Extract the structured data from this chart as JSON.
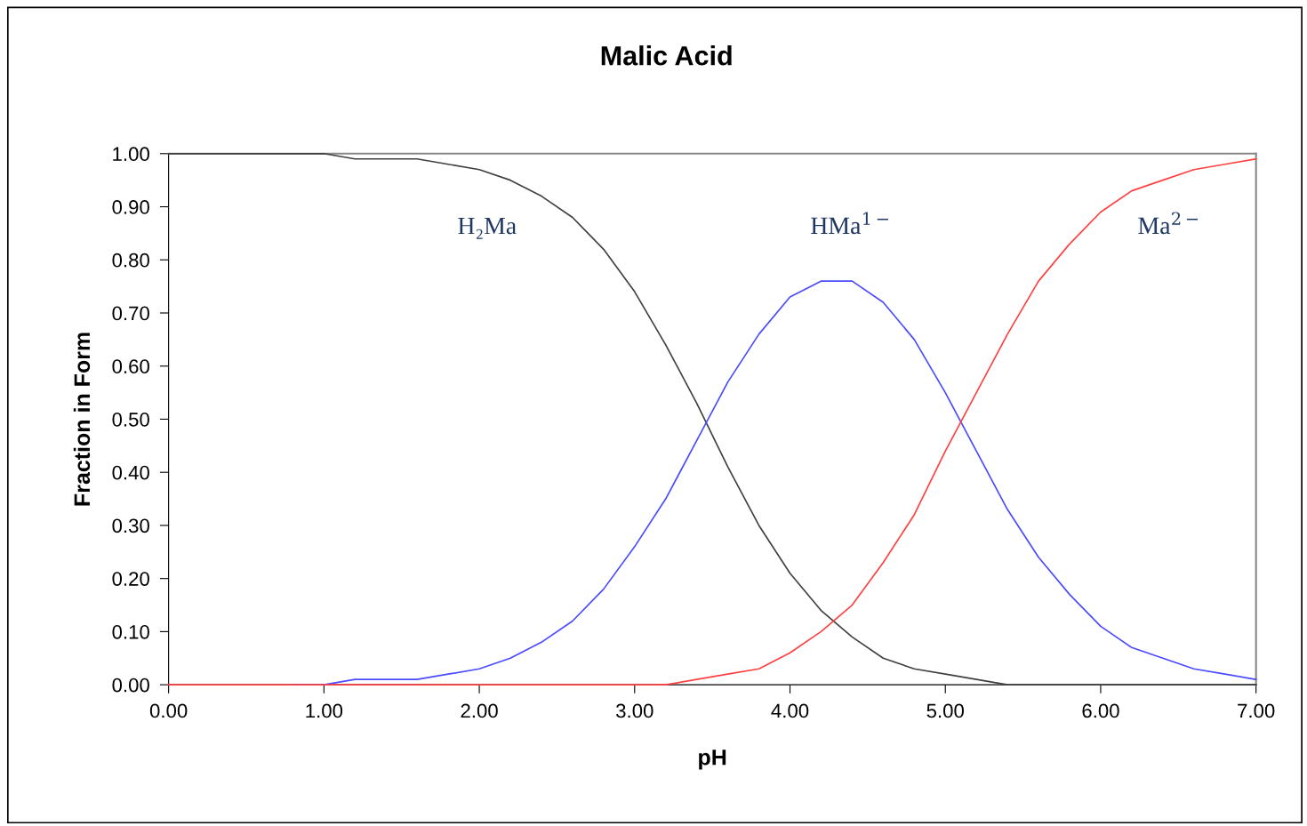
{
  "chart_data": {
    "type": "line",
    "title": "Malic Acid",
    "xlabel": "pH",
    "ylabel": "Fraction in Form",
    "x": [
      0.0,
      0.2,
      0.4,
      0.6,
      0.8,
      1.0,
      1.2,
      1.4,
      1.6,
      1.8,
      2.0,
      2.2,
      2.4,
      2.6,
      2.8,
      3.0,
      3.2,
      3.4,
      3.6,
      3.8,
      4.0,
      4.2,
      4.4,
      4.6,
      4.8,
      5.0,
      5.2,
      5.4,
      5.6,
      5.8,
      6.0,
      6.2,
      6.4,
      6.6,
      6.8,
      7.0
    ],
    "series": [
      {
        "name": "H₂Ma",
        "color": "#404040",
        "values": [
          1.0,
          1.0,
          1.0,
          1.0,
          1.0,
          1.0,
          0.99,
          0.99,
          0.99,
          0.98,
          0.97,
          0.95,
          0.92,
          0.88,
          0.82,
          0.74,
          0.64,
          0.53,
          0.41,
          0.3,
          0.21,
          0.14,
          0.09,
          0.05,
          0.03,
          0.02,
          0.01,
          0.0,
          0.0,
          0.0,
          0.0,
          0.0,
          0.0,
          0.0,
          0.0,
          0.0
        ]
      },
      {
        "name": "HMa$^{1−}$",
        "color": "#4a4aff",
        "values": [
          null,
          null,
          null,
          null,
          0.0,
          0.0,
          0.01,
          0.01,
          0.01,
          0.02,
          0.03,
          0.05,
          0.08,
          0.12,
          0.18,
          0.26,
          0.35,
          0.46,
          0.57,
          0.66,
          0.73,
          0.76,
          0.76,
          0.72,
          0.65,
          0.55,
          0.44,
          0.33,
          0.24,
          0.17,
          0.11,
          0.07,
          0.05,
          0.03,
          0.02,
          0.01
        ]
      },
      {
        "name": "Ma$^{2−}$",
        "color": "#ff4040",
        "values": [
          0.0,
          0.0,
          0.0,
          0.0,
          0.0,
          0.0,
          0.0,
          0.0,
          0.0,
          0.0,
          0.0,
          0.0,
          0.0,
          0.0,
          0.0,
          0.0,
          0.0,
          0.01,
          0.02,
          0.03,
          0.06,
          0.1,
          0.15,
          0.23,
          0.32,
          0.44,
          0.55,
          0.66,
          0.76,
          0.83,
          0.89,
          0.93,
          0.95,
          0.97,
          0.98,
          0.99
        ]
      }
    ],
    "xlim": [
      0,
      7
    ],
    "ylim": [
      0,
      1
    ],
    "xticks": [
      {
        "value": 0,
        "label": "0.00"
      },
      {
        "value": 1,
        "label": "1.00"
      },
      {
        "value": 2,
        "label": "2.00"
      },
      {
        "value": 3,
        "label": "3.00"
      },
      {
        "value": 4,
        "label": "4.00"
      },
      {
        "value": 5,
        "label": "5.00"
      },
      {
        "value": 6,
        "label": "6.00"
      },
      {
        "value": 7,
        "label": "7.00"
      }
    ],
    "yticks": [
      {
        "value": 0,
        "label": "0.00"
      },
      {
        "value": 0.1,
        "label": "0.10"
      },
      {
        "value": 0.2,
        "label": "0.20"
      },
      {
        "value": 0.3,
        "label": "0.30"
      },
      {
        "value": 0.4,
        "label": "0.40"
      },
      {
        "value": 0.5,
        "label": "0.50"
      },
      {
        "value": 0.6,
        "label": "0.60"
      },
      {
        "value": 0.7,
        "label": "0.70"
      },
      {
        "value": 0.8,
        "label": "0.80"
      },
      {
        "value": 0.9,
        "label": "0.90"
      },
      {
        "value": 1,
        "label": "1.00"
      }
    ],
    "grid": false,
    "legend": false,
    "marker": "none",
    "line_style": "solid"
  }
}
